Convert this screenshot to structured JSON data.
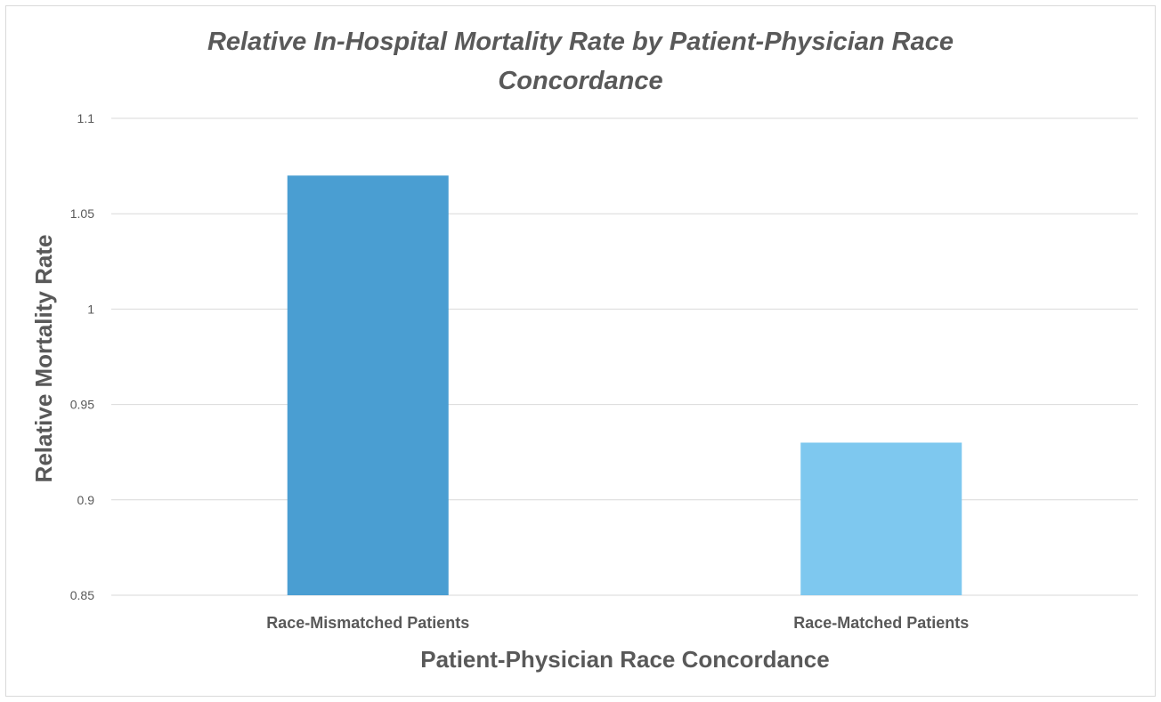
{
  "chart_data": {
    "type": "bar",
    "title_lines": [
      "Relative In-Hospital Mortality Rate by Patient-Physician Race",
      "Concordance"
    ],
    "xlabel": "Patient-Physician Race Concordance",
    "ylabel": "Relative Mortality Rate",
    "categories": [
      "Race-Mismatched Patients",
      "Race-Matched Patients"
    ],
    "values": [
      1.07,
      0.93
    ],
    "bar_colors": [
      "#4a9ed2",
      "#7ec8ef"
    ],
    "ylim": [
      0.85,
      1.1
    ],
    "yticks": [
      "0.85",
      "0.9",
      "0.95",
      "1",
      "1.05",
      "1.1"
    ],
    "ytick_values": [
      0.85,
      0.9,
      0.95,
      1.0,
      1.05,
      1.1
    ],
    "grid": true,
    "legend": "none"
  }
}
